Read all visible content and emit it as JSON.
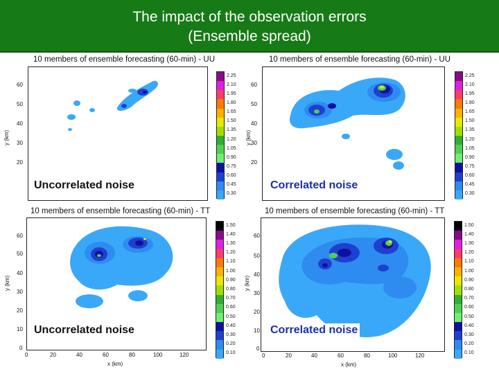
{
  "slide": {
    "title_line1": "The impact of the observation errors",
    "title_line2": "(Ensemble spread)"
  },
  "panels": [
    {
      "title": "10 members of ensemble forecasting (60-min) - UU",
      "label": "Uncorrelated noise",
      "ylabel": "y (km)",
      "yticks": [
        "60",
        "50",
        "40",
        "30",
        "20"
      ],
      "colorbar": [
        "2.25",
        "2.10",
        "1.95",
        "1.80",
        "1.65",
        "1.50",
        "1.35",
        "1.20",
        "1.05",
        "0.90",
        "0.75",
        "0.60",
        "0.45",
        "0.30"
      ]
    },
    {
      "title": "10 members of ensemble forecasting (60-min) - UU",
      "label": "Correlated noise",
      "ylabel": "y (km)",
      "yticks": [
        "60",
        "50",
        "40",
        "30",
        "20"
      ],
      "colorbar": [
        "2.25",
        "2.10",
        "1.95",
        "1.80",
        "1.65",
        "1.50",
        "1.35",
        "1.20",
        "1.05",
        "0.90",
        "0.75",
        "0.60",
        "0.45",
        "0.30"
      ]
    },
    {
      "title": "10 members of ensemble forecasting (60-min) - TT",
      "label": "Uncorrelated noise",
      "ylabel": "y (km)",
      "yticks": [
        "60",
        "50",
        "40",
        "30",
        "20",
        "10",
        "0"
      ],
      "xticks": [
        "0",
        "20",
        "40",
        "60",
        "80",
        "100",
        "120"
      ],
      "xlabel": "x (km)",
      "colorbar": [
        "1.50",
        "1.40",
        "1.30",
        "1.20",
        "1.10",
        "1.00",
        "0.90",
        "0.80",
        "0.70",
        "0.60",
        "0.50",
        "0.40",
        "0.30",
        "0.20",
        "0.10"
      ]
    },
    {
      "title": "10 members of ensemble forecasting (60-min) - TT",
      "label": "Correlated noise",
      "ylabel": "y (km)",
      "yticks": [
        "60",
        "50",
        "40",
        "30",
        "20",
        "10",
        "0"
      ],
      "xticks": [
        "0",
        "20",
        "40",
        "60",
        "80",
        "100",
        "120"
      ],
      "xlabel": "x (km)",
      "colorbar": [
        "1.50",
        "1.40",
        "1.30",
        "1.20",
        "1.10",
        "1.00",
        "0.90",
        "0.80",
        "0.70",
        "0.60",
        "0.50",
        "0.40",
        "0.30",
        "0.20",
        "0.10"
      ]
    }
  ],
  "colors": {
    "header_green": "#167a16",
    "scale": [
      "#000000",
      "#8a0a8a",
      "#e020e0",
      "#ff3a70",
      "#ff7a00",
      "#ffb000",
      "#e8e800",
      "#a0e000",
      "#30b030",
      "#50d050",
      "#70f070",
      "#1010a0",
      "#1e40d0",
      "#2e8cf0",
      "#3aa8f8"
    ]
  }
}
